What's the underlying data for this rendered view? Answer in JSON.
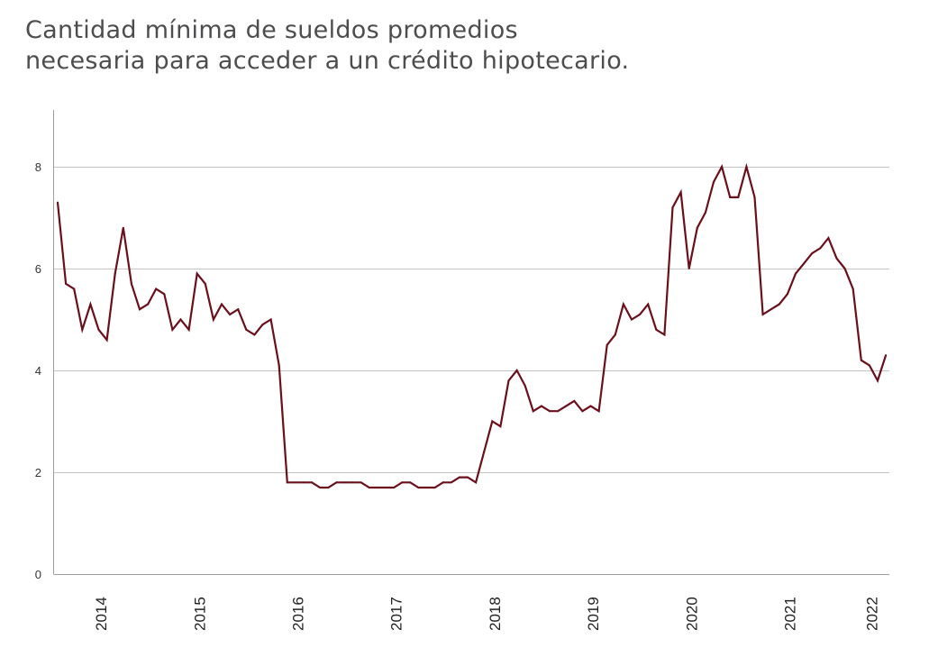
{
  "chart_data": {
    "type": "line",
    "title": "Cantidad mínima de sueldos promedios",
    "subtitle": "necesaria para acceder a un crédito hipotecario.",
    "xlabel": "",
    "ylabel": "",
    "ylim": [
      0,
      9.1
    ],
    "yticks": [
      0,
      2,
      4,
      6,
      8
    ],
    "grid": true,
    "legend": "none",
    "line_color": "#6b0f1a",
    "start_month_offset": -6,
    "xtick_labels": [
      {
        "label": "2014",
        "month_index": 6
      },
      {
        "label": "2015",
        "month_index": 18
      },
      {
        "label": "2016",
        "month_index": 30
      },
      {
        "label": "2017",
        "month_index": 42
      },
      {
        "label": "2018",
        "month_index": 54
      },
      {
        "label": "2019",
        "month_index": 66
      },
      {
        "label": "2020",
        "month_index": 78
      },
      {
        "label": "2021",
        "month_index": 90
      },
      {
        "label": "2022",
        "month_index": 100
      }
    ],
    "series": [
      {
        "name": "Sueldos promedios",
        "values": [
          7.3,
          5.7,
          5.6,
          4.8,
          5.3,
          4.8,
          4.6,
          5.9,
          6.8,
          5.7,
          5.2,
          5.3,
          5.6,
          5.5,
          4.8,
          5.0,
          4.8,
          5.9,
          5.7,
          5.0,
          5.3,
          5.1,
          5.2,
          4.8,
          4.7,
          4.9,
          5.0,
          4.1,
          1.8,
          1.8,
          1.8,
          1.8,
          1.7,
          1.7,
          1.8,
          1.8,
          1.8,
          1.8,
          1.7,
          1.7,
          1.7,
          1.7,
          1.8,
          1.8,
          1.7,
          1.7,
          1.7,
          1.8,
          1.8,
          1.9,
          1.9,
          1.8,
          2.4,
          3.0,
          2.9,
          3.8,
          4.0,
          3.7,
          3.2,
          3.3,
          3.2,
          3.2,
          3.3,
          3.4,
          3.2,
          3.3,
          3.2,
          4.5,
          4.7,
          5.3,
          5.0,
          5.1,
          5.3,
          4.8,
          4.7,
          7.2,
          7.5,
          6.0,
          6.8,
          7.1,
          7.7,
          8.0,
          7.4,
          7.4,
          8.0,
          7.4,
          5.1,
          5.2,
          5.3,
          5.5,
          5.9,
          6.1,
          6.3,
          6.4,
          6.6,
          6.2,
          6.0,
          5.6,
          4.2,
          4.1,
          3.8,
          4.3
        ]
      }
    ]
  }
}
